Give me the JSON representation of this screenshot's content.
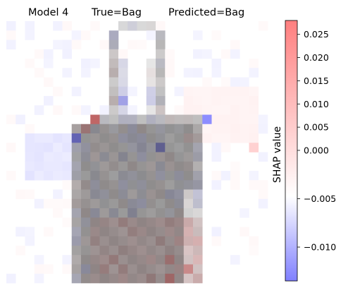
{
  "chart_data": {
    "type": "heatmap",
    "title": "Model 4     True=Bag     Predicted=Bag",
    "title_parts": {
      "model": "Model 4",
      "true_label": "True=Bag",
      "predicted_label": "Predicted=Bag"
    },
    "image_size": [
      28,
      28
    ],
    "colorbar": {
      "label": "SHAP value",
      "vmin": -0.0135,
      "vmax": 0.028,
      "ticks": [
        {
          "value": 0.025,
          "label": "0.025"
        },
        {
          "value": 0.02,
          "label": "0.020"
        },
        {
          "value": 0.015,
          "label": "0.015"
        },
        {
          "value": 0.01,
          "label": "0.010"
        },
        {
          "value": 0.005,
          "label": "0.005"
        },
        {
          "value": 0.0,
          "label": "0.000"
        },
        {
          "value": -0.005,
          "label": "−0.005"
        },
        {
          "value": -0.01,
          "label": "−0.010"
        }
      ],
      "colormap": "bwr",
      "low_color": "#7f7fff",
      "mid_color": "#ffffff",
      "high_color": "#ff7f7f"
    },
    "notable_pixels": [
      {
        "row": 10,
        "col": 9,
        "value": 0.026
      },
      {
        "row": 10,
        "col": 21,
        "value": -0.012
      },
      {
        "row": 12,
        "col": 7,
        "value": -0.012
      },
      {
        "row": 11,
        "col": 8,
        "value": 0.014
      },
      {
        "row": 27,
        "col": 17,
        "value": 0.02
      },
      {
        "row": 26,
        "col": 19,
        "value": 0.018
      },
      {
        "row": 25,
        "col": 17,
        "value": 0.016
      },
      {
        "row": 8,
        "col": 12,
        "value": -0.008
      },
      {
        "row": 13,
        "col": 16,
        "value": -0.009
      },
      {
        "row": 13,
        "col": 26,
        "value": 0.01
      }
    ]
  }
}
